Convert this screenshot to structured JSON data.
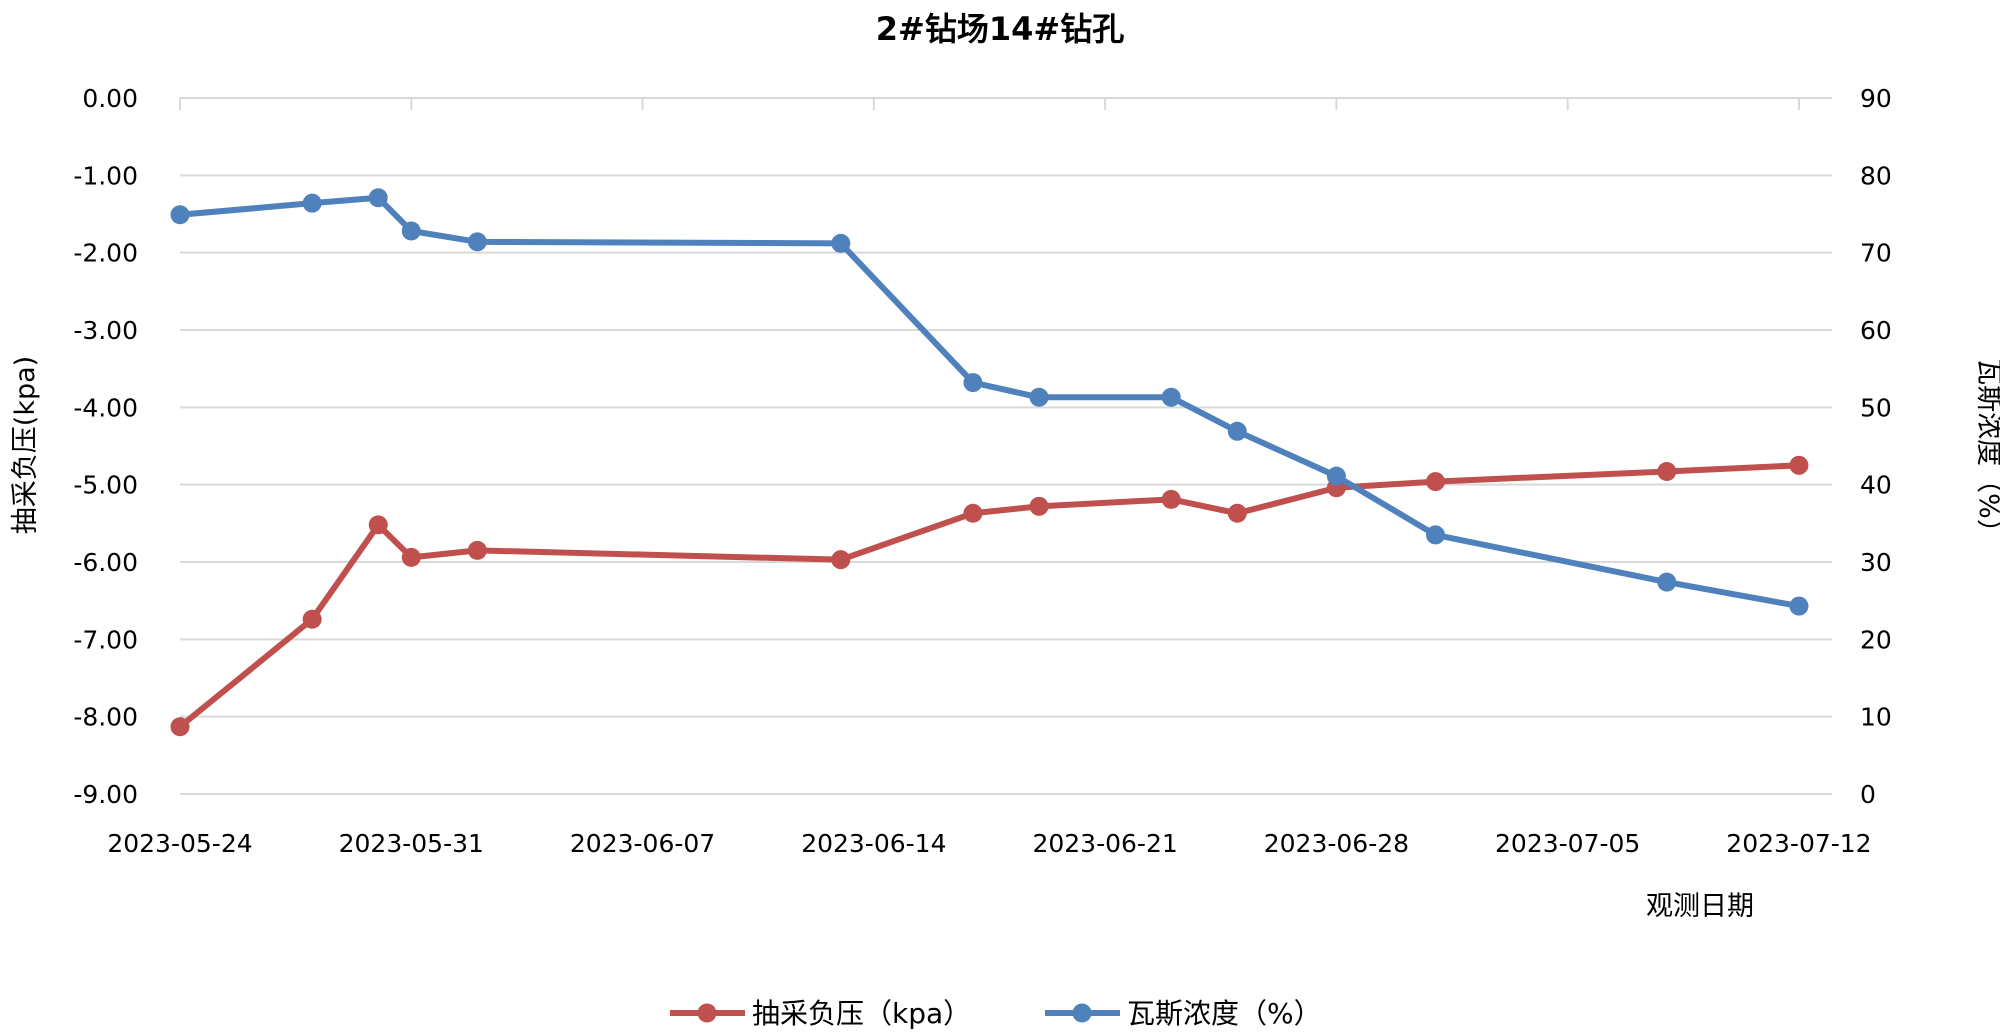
{
  "chart_data": {
    "type": "line",
    "title": "2#钻场14#钻孔",
    "xlabel": "观测日期",
    "ylabel_left": "抽采负压(kpa)",
    "ylabel_right": "瓦斯浓度（%）",
    "x_ticks": [
      "2023-05-24",
      "2023-05-31",
      "2023-06-07",
      "2023-06-14",
      "2023-06-21",
      "2023-06-28",
      "2023-07-05",
      "2023-07-12"
    ],
    "xlim": [
      "2023-05-24",
      "2023-07-13"
    ],
    "y_left_ticks": [
      "0.00",
      "-1.00",
      "-2.00",
      "-3.00",
      "-4.00",
      "-5.00",
      "-6.00",
      "-7.00",
      "-8.00",
      "-9.00"
    ],
    "ylim_left": [
      -9,
      0
    ],
    "y_right_ticks": [
      "90",
      "80",
      "70",
      "60",
      "50",
      "40",
      "30",
      "20",
      "10",
      "0"
    ],
    "ylim_right": [
      0,
      90
    ],
    "grid": true,
    "legend_position": "bottom",
    "series": [
      {
        "name": "抽采负压（kpa）",
        "axis": "left",
        "color": "#c0504d",
        "points": [
          {
            "x": "2023-05-24",
            "y": -8.13
          },
          {
            "x": "2023-05-28",
            "y": -6.74
          },
          {
            "x": "2023-05-30",
            "y": -5.52
          },
          {
            "x": "2023-05-31",
            "y": -5.94
          },
          {
            "x": "2023-06-02",
            "y": -5.85
          },
          {
            "x": "2023-06-13",
            "y": -5.97
          },
          {
            "x": "2023-06-17",
            "y": -5.37
          },
          {
            "x": "2023-06-19",
            "y": -5.28
          },
          {
            "x": "2023-06-23",
            "y": -5.19
          },
          {
            "x": "2023-06-25",
            "y": -5.37
          },
          {
            "x": "2023-06-28",
            "y": -5.04
          },
          {
            "x": "2023-07-01",
            "y": -4.96
          },
          {
            "x": "2023-07-08",
            "y": -4.83
          },
          {
            "x": "2023-07-12",
            "y": -4.75
          }
        ]
      },
      {
        "name": "瓦斯浓度（%）",
        "axis": "right",
        "color": "#4f81bd",
        "points": [
          {
            "x": "2023-05-24",
            "y": 74.9
          },
          {
            "x": "2023-05-28",
            "y": 76.4
          },
          {
            "x": "2023-05-30",
            "y": 77.1
          },
          {
            "x": "2023-05-31",
            "y": 72.8
          },
          {
            "x": "2023-06-02",
            "y": 71.4
          },
          {
            "x": "2023-06-13",
            "y": 71.2
          },
          {
            "x": "2023-06-17",
            "y": 53.2
          },
          {
            "x": "2023-06-19",
            "y": 51.3
          },
          {
            "x": "2023-06-23",
            "y": 51.3
          },
          {
            "x": "2023-06-25",
            "y": 46.9
          },
          {
            "x": "2023-06-28",
            "y": 41.1
          },
          {
            "x": "2023-07-01",
            "y": 33.5
          },
          {
            "x": "2023-07-08",
            "y": 27.4
          },
          {
            "x": "2023-07-12",
            "y": 24.3
          }
        ]
      }
    ]
  }
}
